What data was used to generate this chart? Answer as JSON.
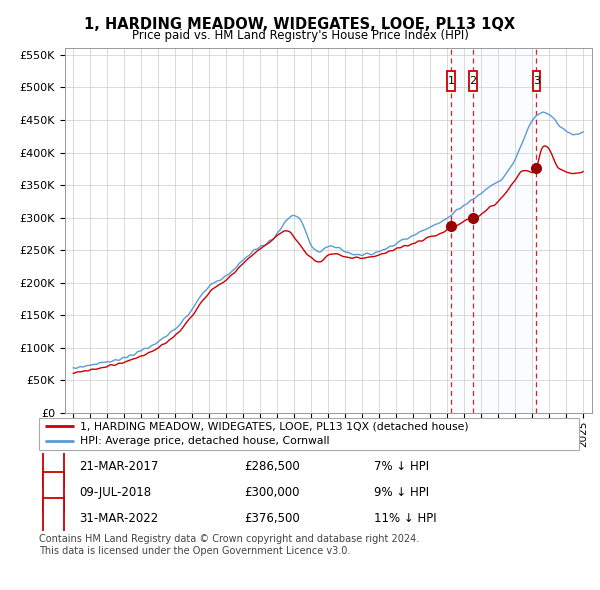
{
  "title": "1, HARDING MEADOW, WIDEGATES, LOOE, PL13 1QX",
  "subtitle": "Price paid vs. HM Land Registry's House Price Index (HPI)",
  "legend_line1": "1, HARDING MEADOW, WIDEGATES, LOOE, PL13 1QX (detached house)",
  "legend_line2": "HPI: Average price, detached house, Cornwall",
  "footnote": "Contains HM Land Registry data © Crown copyright and database right 2024.\nThis data is licensed under the Open Government Licence v3.0.",
  "transactions": [
    {
      "num": 1,
      "date": "21-MAR-2017",
      "price": 286500,
      "pct": "7%",
      "dir": "↓",
      "rel": "HPI"
    },
    {
      "num": 2,
      "date": "09-JUL-2018",
      "price": 300000,
      "pct": "9%",
      "dir": "↓",
      "rel": "HPI"
    },
    {
      "num": 3,
      "date": "31-MAR-2022",
      "price": 376500,
      "pct": "11%",
      "dir": "↓",
      "rel": "HPI"
    }
  ],
  "transaction_dates": [
    2017.22,
    2018.52,
    2022.25
  ],
  "transaction_prices": [
    286500,
    300000,
    376500
  ],
  "hpi_color": "#5b9bd5",
  "paid_color": "#cc0000",
  "marker_color": "#990000",
  "vline_color": "#cc0000",
  "shade_color": "#ddeeff",
  "background_color": "#ffffff",
  "grid_color": "#cccccc",
  "ylim": [
    0,
    560000
  ],
  "xlim_start": 1994.5,
  "xlim_end": 2025.5,
  "figwidth": 6.0,
  "figheight": 5.9,
  "dpi": 100
}
